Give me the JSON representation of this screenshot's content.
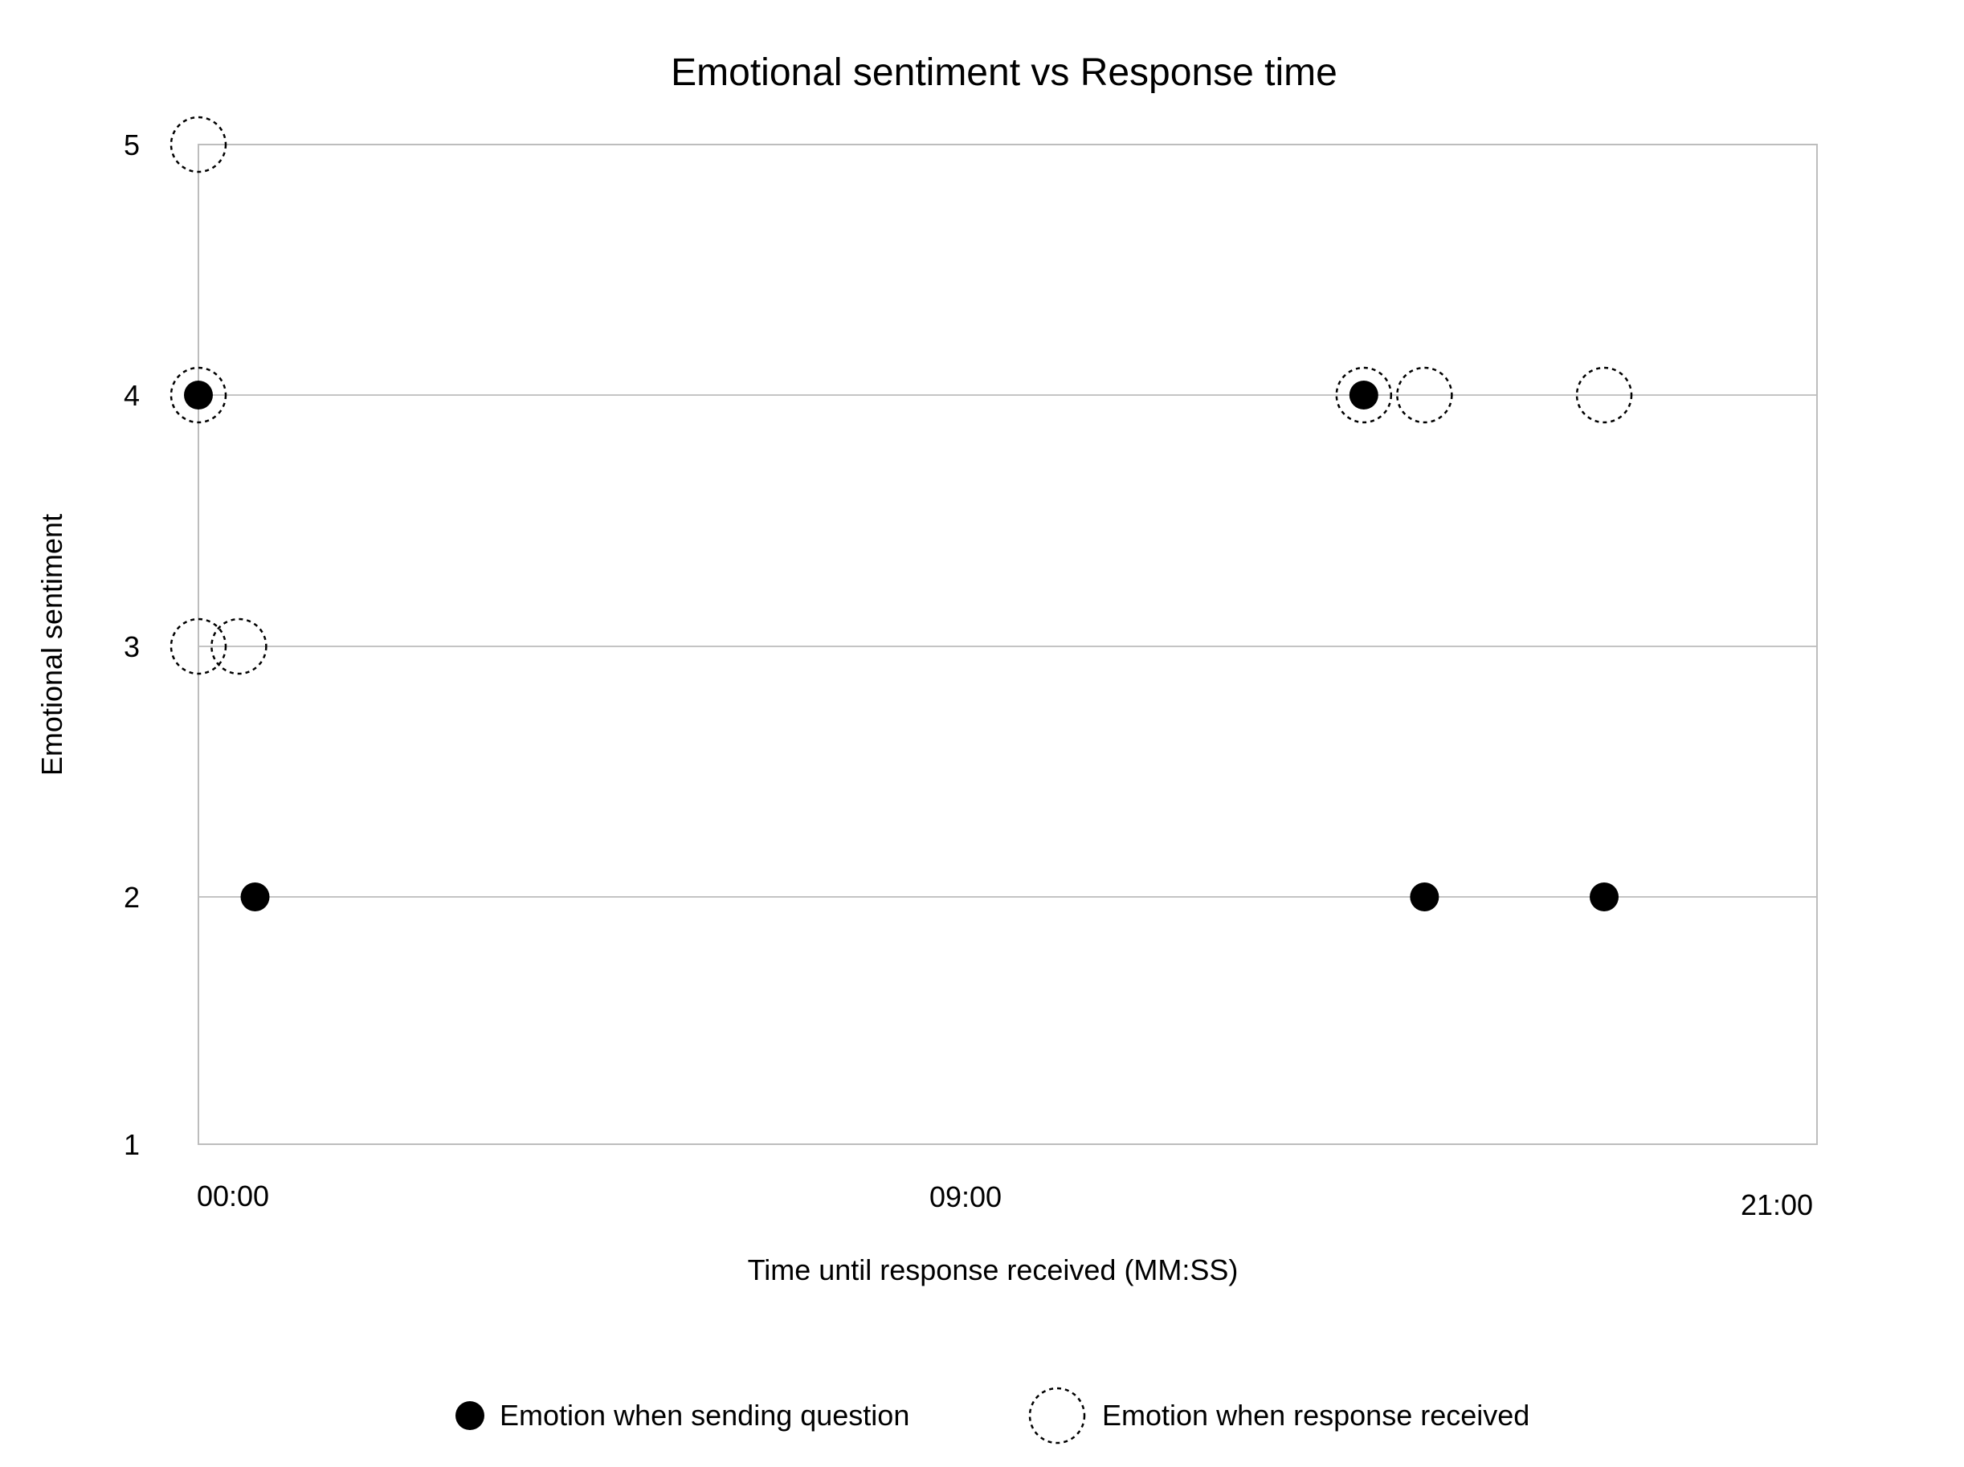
{
  "chart_data": {
    "type": "scatter",
    "title": "Emotional sentiment vs Response time",
    "xlabel": "Time until response received (MM:SS)",
    "ylabel": "Emotional sentiment",
    "x_ticks": [
      "00:00",
      "09:00",
      "21:00"
    ],
    "y_ticks": [
      "1",
      "2",
      "3",
      "4",
      "5"
    ],
    "xlim": [
      0,
      20
    ],
    "ylim": [
      1,
      5
    ],
    "grid": "horizontal",
    "legend_position": "bottom",
    "series": [
      {
        "name": "Emotion when sending question",
        "marker": "filled-circle",
        "color": "#000000",
        "points": [
          {
            "x": 0,
            "y": 4
          },
          {
            "x": 0.7,
            "y": 2
          },
          {
            "x": 14.4,
            "y": 4
          },
          {
            "x": 15.15,
            "y": 2
          },
          {
            "x": 17.37,
            "y": 2
          }
        ]
      },
      {
        "name": "Emotion when response received",
        "marker": "dotted-open-circle",
        "color": "#000000",
        "points": [
          {
            "x": 0,
            "y": 5
          },
          {
            "x": 0,
            "y": 4
          },
          {
            "x": 0,
            "y": 3
          },
          {
            "x": 0.5,
            "y": 3
          },
          {
            "x": 14.4,
            "y": 4
          },
          {
            "x": 15.15,
            "y": 4
          },
          {
            "x": 17.37,
            "y": 4
          }
        ]
      }
    ]
  },
  "colors": {
    "gridline": "#c4c4c4",
    "frame": "#bdbdbd",
    "marker": "#000000"
  }
}
